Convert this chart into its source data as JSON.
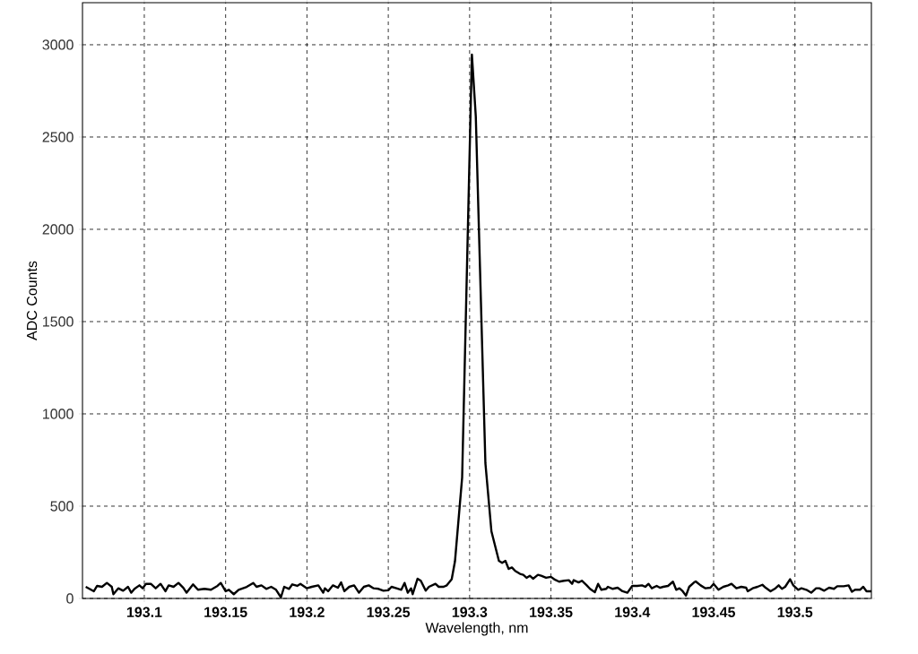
{
  "chart_data": {
    "type": "line",
    "xlabel": "Wavelength, nm",
    "ylabel": "ADC Counts",
    "color": "#000000",
    "grid": true,
    "line_style": "solid",
    "xlim": [
      193.062,
      193.547
    ],
    "ylim": [
      0,
      3228
    ],
    "xticks": [
      193.1,
      193.15,
      193.2,
      193.25,
      193.3,
      193.35,
      193.4,
      193.45,
      193.5
    ],
    "yticks": [
      0,
      500,
      1000,
      1500,
      2000,
      2500,
      3000
    ],
    "x": [
      193.064,
      193.069,
      193.071,
      193.074,
      193.077,
      193.08,
      193.081,
      193.084,
      193.087,
      193.09,
      193.092,
      193.094,
      193.097,
      193.099,
      193.101,
      193.104,
      193.107,
      193.11,
      193.113,
      193.115,
      193.118,
      193.121,
      193.124,
      193.126,
      193.13,
      193.133,
      193.137,
      193.141,
      193.145,
      193.147,
      193.15,
      193.152,
      193.155,
      193.158,
      193.163,
      193.167,
      193.169,
      193.172,
      193.175,
      193.178,
      193.181,
      193.184,
      193.186,
      193.189,
      193.191,
      193.194,
      193.196,
      193.2,
      193.203,
      193.207,
      193.21,
      193.211,
      193.213,
      193.216,
      193.219,
      193.221,
      193.223,
      193.226,
      193.229,
      193.232,
      193.235,
      193.238,
      193.241,
      193.244,
      193.247,
      193.25,
      193.252,
      193.255,
      193.258,
      193.26,
      193.262,
      193.264,
      193.265,
      193.268,
      193.27,
      193.273,
      193.275,
      193.279,
      193.281,
      193.284,
      193.286,
      193.289,
      193.291,
      193.2954,
      193.3014,
      193.3038,
      193.3097,
      193.3134,
      193.318,
      193.32,
      193.322,
      193.324,
      193.326,
      193.328,
      193.331,
      193.333,
      193.335,
      193.337,
      193.339,
      193.342,
      193.344,
      193.347,
      193.35,
      193.352,
      193.355,
      193.358,
      193.361,
      193.363,
      193.364,
      193.367,
      193.369,
      193.372,
      193.374,
      193.377,
      193.379,
      193.381,
      193.384,
      193.385,
      193.388,
      193.391,
      193.394,
      193.397,
      193.4,
      193.403,
      193.406,
      193.408,
      193.41,
      193.412,
      193.415,
      193.417,
      193.419,
      193.422,
      193.425,
      193.427,
      193.429,
      193.431,
      193.433,
      193.435,
      193.438,
      193.439,
      193.442,
      193.445,
      193.448,
      193.45,
      193.453,
      193.456,
      193.459,
      193.461,
      193.464,
      193.467,
      193.47,
      193.471,
      193.474,
      193.477,
      193.48,
      193.482,
      193.485,
      193.488,
      193.49,
      193.492,
      193.494,
      193.497,
      193.499,
      193.502,
      193.504,
      193.507,
      193.51,
      193.513,
      193.515,
      193.518,
      193.521,
      193.524,
      193.526,
      193.53,
      193.533,
      193.535,
      193.537,
      193.54,
      193.542,
      193.544,
      193.547
    ],
    "values": [
      63,
      39,
      68,
      63,
      84,
      63,
      23,
      55,
      42,
      63,
      31,
      52,
      71,
      55,
      79,
      79,
      55,
      79,
      39,
      71,
      63,
      84,
      58,
      31,
      76,
      47,
      52,
      47,
      68,
      84,
      39,
      47,
      23,
      47,
      63,
      84,
      63,
      71,
      52,
      63,
      47,
      6,
      63,
      52,
      76,
      68,
      79,
      55,
      63,
      71,
      31,
      55,
      39,
      71,
      58,
      87,
      39,
      63,
      71,
      31,
      63,
      71,
      55,
      52,
      42,
      44,
      63,
      55,
      47,
      84,
      31,
      55,
      23,
      107,
      96,
      42,
      63,
      79,
      63,
      63,
      71,
      104,
      201,
      655,
      2947,
      2612,
      733,
      364,
      204,
      193,
      204,
      160,
      168,
      149,
      133,
      128,
      112,
      123,
      107,
      128,
      123,
      112,
      117,
      104,
      91,
      96,
      99,
      79,
      99,
      87,
      96,
      71,
      52,
      34,
      79,
      47,
      52,
      63,
      52,
      58,
      39,
      31,
      68,
      68,
      71,
      63,
      79,
      55,
      68,
      58,
      63,
      68,
      91,
      47,
      55,
      39,
      15,
      63,
      87,
      92,
      71,
      55,
      58,
      79,
      47,
      63,
      71,
      79,
      55,
      63,
      58,
      39,
      55,
      63,
      74,
      58,
      39,
      55,
      71,
      52,
      63,
      104,
      71,
      47,
      55,
      47,
      31,
      55,
      55,
      42,
      58,
      52,
      66,
      66,
      71,
      36,
      47,
      47,
      63,
      39,
      39
    ]
  }
}
